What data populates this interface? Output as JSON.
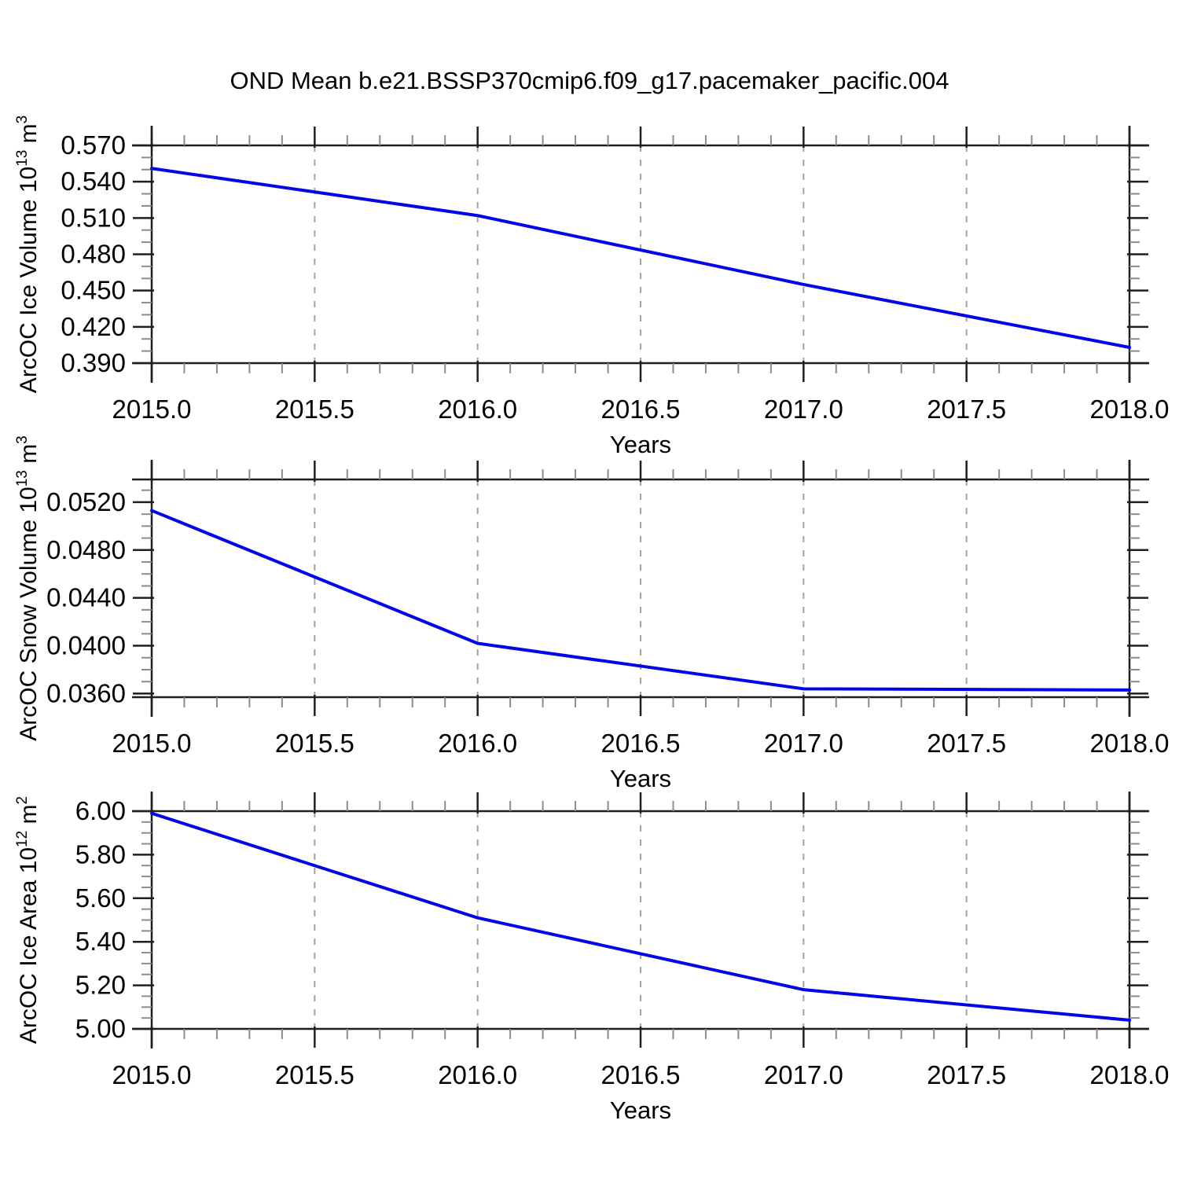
{
  "figure_title": "OND Mean b.e21.BSSP370cmip6.f09_g17.pacemaker_pacific.004",
  "line_color": "#0404e8",
  "chart_data": [
    {
      "type": "line",
      "title": "ArcOC Ice Volume",
      "ylabel": "ArcOC Ice Volume 10^13 m^3",
      "ylabel_rich": [
        {
          "t": "ArcOC Ice Volume 10"
        },
        {
          "t": "13",
          "sup": true
        },
        {
          "t": " m"
        },
        {
          "t": "3",
          "sup": true
        }
      ],
      "xlabel": "Years",
      "x": [
        2015.0,
        2016.0,
        2017.0,
        2018.0
      ],
      "values": [
        0.551,
        0.512,
        0.455,
        0.403
      ],
      "xlim": [
        2015.0,
        2018.0
      ],
      "ylim": [
        0.39,
        0.57
      ],
      "ytick_major": {
        "start": 0.39,
        "step": 0.03,
        "count": 7
      },
      "ytick_minor_step": 0.01,
      "ytick_decimals": 3,
      "xtick_major_step": 0.5,
      "xtick_minor_step": 0.1,
      "xtick_decimals": 1,
      "grid": "vertical-dashed-at-major-x"
    },
    {
      "type": "line",
      "title": "ArcOC Snow Volume",
      "ylabel": "ArcOC Snow Volume 10^13 m^3",
      "ylabel_rich": [
        {
          "t": "ArcOC Snow Volume 10"
        },
        {
          "t": "13",
          "sup": true
        },
        {
          "t": " m"
        },
        {
          "t": "3",
          "sup": true
        }
      ],
      "xlabel": "Years",
      "x": [
        2015.0,
        2016.0,
        2017.0,
        2018.0
      ],
      "values": [
        0.0513,
        0.0402,
        0.0364,
        0.0363
      ],
      "xlim": [
        2015.0,
        2018.0
      ],
      "ylim": [
        0.0357,
        0.0539
      ],
      "ytick_major": {
        "start": 0.036,
        "step": 0.004,
        "count": 5
      },
      "ytick_minor_step": 0.001,
      "ytick_decimals": 4,
      "xtick_major_step": 0.5,
      "xtick_minor_step": 0.1,
      "xtick_decimals": 1,
      "grid": "vertical-dashed-at-major-x"
    },
    {
      "type": "line",
      "title": "ArcOC Ice Area",
      "ylabel": "ArcOC Ice Area 10^12 m^2",
      "ylabel_rich": [
        {
          "t": "ArcOC Ice Area 10"
        },
        {
          "t": "12",
          "sup": true
        },
        {
          "t": " m"
        },
        {
          "t": "2",
          "sup": true
        }
      ],
      "xlabel": "Years",
      "x": [
        2015.0,
        2016.0,
        2017.0,
        2018.0
      ],
      "values": [
        5.99,
        5.51,
        5.18,
        5.04
      ],
      "xlim": [
        2015.0,
        2018.0
      ],
      "ylim": [
        5.0,
        6.0
      ],
      "ytick_major": {
        "start": 5.0,
        "step": 0.2,
        "count": 6
      },
      "ytick_minor_step": 0.05,
      "ytick_decimals": 2,
      "xtick_major_step": 0.5,
      "xtick_minor_step": 0.1,
      "xtick_decimals": 1,
      "grid": "vertical-dashed-at-major-x"
    }
  ]
}
